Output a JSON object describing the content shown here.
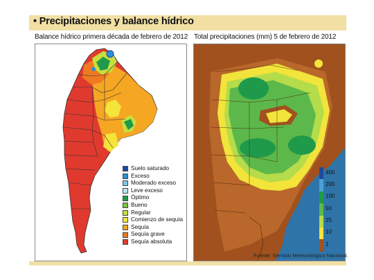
{
  "header": {
    "title": "• Precipitaciones y balance hídrico"
  },
  "left_map": {
    "subtitle": "Balance hídrico primera década de febrero de 2012",
    "legend": [
      {
        "label": "Suelo saturado",
        "color": "#1d4aa0"
      },
      {
        "label": "Exceso",
        "color": "#2a8fd6"
      },
      {
        "label": "Moderado exceso",
        "color": "#7dc4ec"
      },
      {
        "label": "Leve exceso",
        "color": "#b8e6ef"
      },
      {
        "label": "Óptimo",
        "color": "#1f9a4a"
      },
      {
        "label": "Bueno",
        "color": "#7cc242"
      },
      {
        "label": "Regular",
        "color": "#c7de3d"
      },
      {
        "label": "Comienzo de sequía",
        "color": "#f5e43a"
      },
      {
        "label": "Sequía",
        "color": "#f5a623"
      },
      {
        "label": "Sequía grave",
        "color": "#ef7a22"
      },
      {
        "label": "Sequía absoluta",
        "color": "#e03a2e"
      }
    ]
  },
  "right_map": {
    "subtitle": "Total precipitaciones (mm) 5 de febrero de 2012",
    "scale": [
      {
        "label": "400",
        "color": "#1d4aa0"
      },
      {
        "label": "200",
        "color": "#4a9fd8"
      },
      {
        "label": "100",
        "color": "#1f9a4a"
      },
      {
        "label": "50",
        "color": "#5cb84a"
      },
      {
        "label": "25",
        "color": "#b5dc4a"
      },
      {
        "label": "10",
        "color": "#f2e43a"
      },
      {
        "label": "1",
        "color": "#a0511e"
      }
    ]
  },
  "footer": {
    "source": "Fuente: Servicio Meteorológico Nacional."
  }
}
